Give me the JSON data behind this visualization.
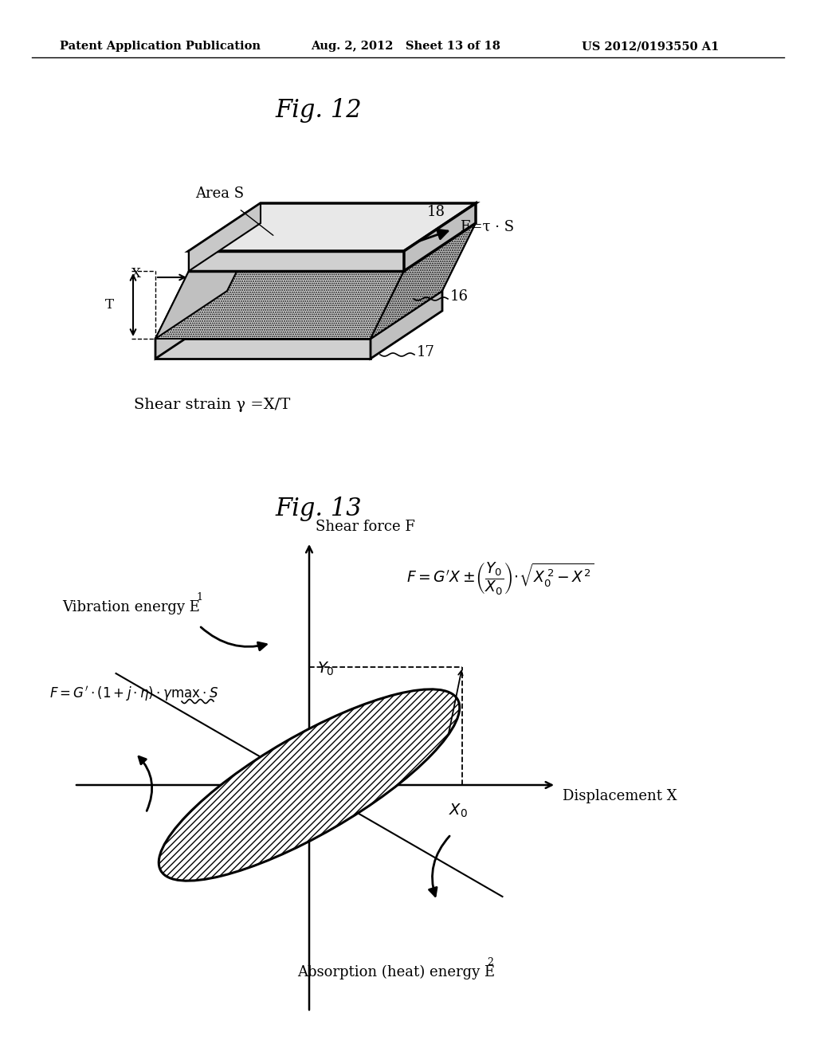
{
  "background_color": "#ffffff",
  "header_left": "Patent Application Publication",
  "header_center": "Aug. 2, 2012   Sheet 13 of 18",
  "header_right": "US 2012/0193550 A1",
  "fig12_title": "Fig. 12",
  "fig13_title": "Fig. 13",
  "shear_strain_label": "Shear strain γ =X/T",
  "label_18": "18",
  "label_16": "16",
  "label_17": "17",
  "label_area_s": "Area S",
  "label_X": "X",
  "label_T": "T",
  "label_F_tau": "F=τ·S",
  "fig13_ylabel": "Shear force F",
  "fig13_xlabel": "Displacement X",
  "label_Y0": "Y_0",
  "label_X0": "X_0",
  "label_vibration": "Vibration energy E",
  "label_absorption": "Absorption (heat) energy E",
  "label_F_formula_left": "F = G’·(1 + j·η)·γmax·S"
}
